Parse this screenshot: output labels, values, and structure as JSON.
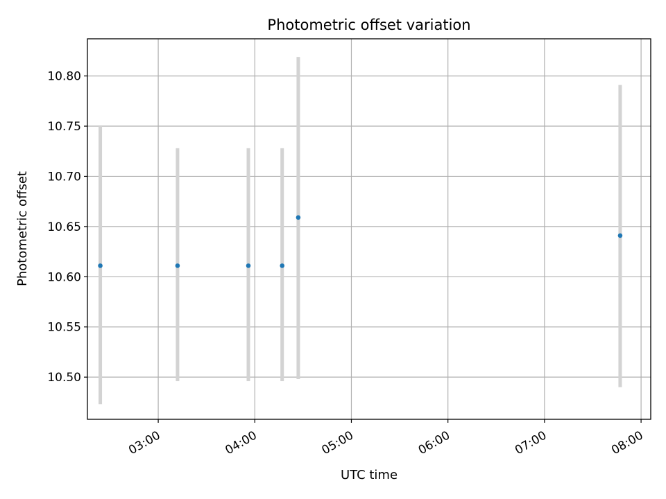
{
  "chart_data": {
    "type": "scatter",
    "title": "Photometric offset variation",
    "xlabel": "UTC time",
    "ylabel": "Photometric offset",
    "x_tick_labels": [
      "03:00",
      "04:00",
      "05:00",
      "06:00",
      "07:00",
      "08:00"
    ],
    "x_ticks": [
      "03:00",
      "04:00",
      "05:00",
      "06:00",
      "07:00",
      "08:00"
    ],
    "xlim": [
      "02:16",
      "08:06"
    ],
    "y_tick_labels": [
      "10.50",
      "10.55",
      "10.60",
      "10.65",
      "10.70",
      "10.75",
      "10.80"
    ],
    "y_ticks": [
      10.5,
      10.55,
      10.6,
      10.65,
      10.7,
      10.75,
      10.8
    ],
    "ylim": [
      10.458,
      10.837
    ],
    "grid": true,
    "point_color": "#1f77b4",
    "errorbar_color": "#d3d3d3",
    "points": [
      {
        "x": "02:24",
        "y": 10.611,
        "y_low": 10.473,
        "y_high": 10.75
      },
      {
        "x": "03:12",
        "y": 10.611,
        "y_low": 10.496,
        "y_high": 10.728
      },
      {
        "x": "03:56",
        "y": 10.611,
        "y_low": 10.496,
        "y_high": 10.728
      },
      {
        "x": "04:17",
        "y": 10.611,
        "y_low": 10.496,
        "y_high": 10.728
      },
      {
        "x": "04:27",
        "y": 10.659,
        "y_low": 10.498,
        "y_high": 10.819
      },
      {
        "x": "07:47",
        "y": 10.641,
        "y_low": 10.49,
        "y_high": 10.791
      }
    ]
  }
}
